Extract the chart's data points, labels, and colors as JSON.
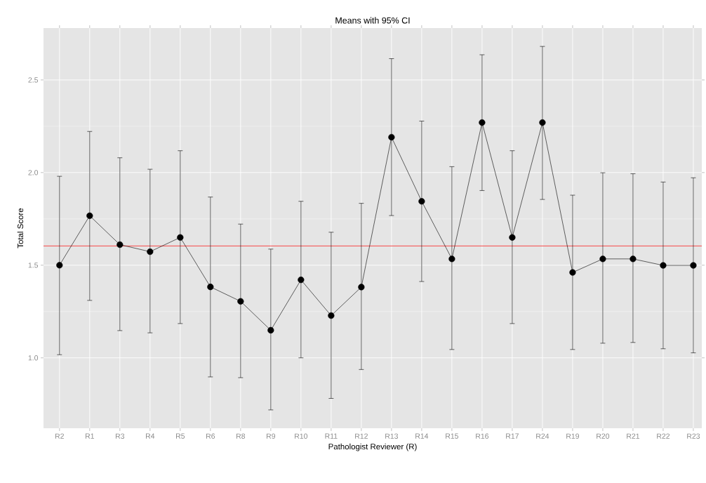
{
  "chart_data": {
    "type": "line",
    "title": "Means with 95% CI",
    "xlabel": "Pathologist Reviewer (R)",
    "ylabel": "Total Score",
    "categories": [
      "R2",
      "R1",
      "R3",
      "R4",
      "R5",
      "R6",
      "R8",
      "R9",
      "R10",
      "R11",
      "R12",
      "R13",
      "R14",
      "R15",
      "R16",
      "R17",
      "R24",
      "R19",
      "R20",
      "R21",
      "R22",
      "R23"
    ],
    "values": [
      1.5,
      1.767,
      1.611,
      1.573,
      1.65,
      1.383,
      1.305,
      1.149,
      1.421,
      1.228,
      1.382,
      2.191,
      1.845,
      1.534,
      2.27,
      1.65,
      2.27,
      1.461,
      1.534,
      1.534,
      1.499,
      1.499
    ],
    "errors": [
      [
        1.017,
        1.98
      ],
      [
        1.31,
        2.222
      ],
      [
        1.147,
        2.08
      ],
      [
        1.135,
        2.018
      ],
      [
        1.185,
        2.118
      ],
      [
        0.897,
        1.868
      ],
      [
        0.893,
        1.722
      ],
      [
        0.719,
        1.587
      ],
      [
        1.0,
        1.845
      ],
      [
        0.781,
        1.678
      ],
      [
        0.937,
        1.834
      ],
      [
        1.768,
        2.615
      ],
      [
        1.412,
        2.278
      ],
      [
        1.045,
        2.032
      ],
      [
        1.903,
        2.636
      ],
      [
        1.185,
        2.118
      ],
      [
        1.855,
        2.681
      ],
      [
        1.045,
        1.878
      ],
      [
        1.079,
        1.999
      ],
      [
        1.083,
        1.994
      ],
      [
        1.049,
        1.949
      ],
      [
        1.027,
        1.972
      ]
    ],
    "color": "#000000",
    "marker": "circle",
    "line_style": "solid",
    "grid": true,
    "ylim": [
      0.62,
      2.78
    ],
    "yticks": [
      {
        "value": 1.0,
        "label": "1.0"
      },
      {
        "value": 1.5,
        "label": "1.5"
      },
      {
        "value": 2.0,
        "label": "2.0"
      },
      {
        "value": 2.5,
        "label": "2.5"
      }
    ],
    "ref_lines": [
      {
        "axis": "y",
        "value": 1.604,
        "color": "#ff0000"
      }
    ]
  }
}
